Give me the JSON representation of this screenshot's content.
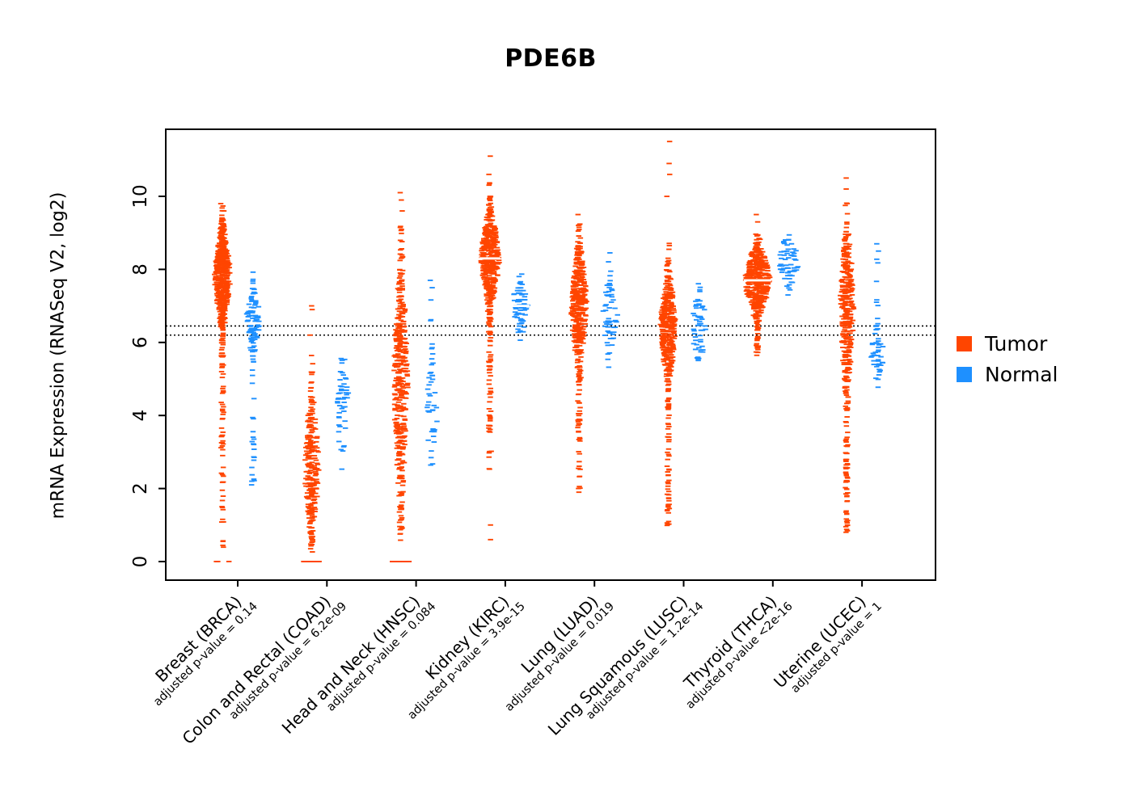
{
  "chart_data": {
    "type": "scatter",
    "variant": "paired strip/violin plot of per-sample expression values",
    "title": "PDE6B",
    "ylabel": "mRNA Expression (RNASeq V2, log2)",
    "xlabel": "",
    "yticks": [
      0,
      2,
      4,
      6,
      8,
      10
    ],
    "ylim": [
      -0.5,
      11.9
    ],
    "grid": false,
    "legend_position": "right",
    "reference_lines": [
      6.45,
      6.2
    ],
    "colors": {
      "tumor": "#FF4500",
      "normal": "#1E90FF"
    },
    "legend": [
      {
        "label": "Tumor",
        "color": "#FF4500"
      },
      {
        "label": "Normal",
        "color": "#1E90FF"
      }
    ],
    "groups": [
      {
        "label": "Breast (BRCA)",
        "pvalue_label": "adjusted p-value = 0.14",
        "tumor": {
          "median": 7.8,
          "q1": 7.3,
          "q3": 8.3,
          "min": 0.2,
          "max": 9.8,
          "n": 650,
          "w": 9,
          "tail_frac": 0.1,
          "tail_lo": 0.2,
          "tail_hi": 6.6,
          "zero_spike": 3,
          "outliers": [
            9.8,
            9.6,
            9.3
          ],
          "median_bar": false
        },
        "normal": {
          "median": 6.6,
          "q1": 6.3,
          "q3": 7.0,
          "min": 2.1,
          "max": 8.0,
          "n": 120,
          "w": 8,
          "tail_frac": 0.2,
          "tail_lo": 2.1,
          "tail_hi": 6.1,
          "zero_spike": 0,
          "outliers": [
            2.1,
            2.2
          ],
          "median_bar": false
        }
      },
      {
        "label": "Colon and Rectal (COAD)",
        "pvalue_label": "adjusted p-value = 6.2e-09",
        "tumor": {
          "median": 2.6,
          "q1": 2.0,
          "q3": 3.4,
          "min": 0.2,
          "max": 5.9,
          "n": 260,
          "w": 8,
          "tail_frac": 0.12,
          "tail_lo": 0.2,
          "tail_hi": 5.9,
          "zero_spike": 20,
          "outliers": [
            7.0,
            6.9,
            6.2
          ],
          "median_bar": false
        },
        "normal": {
          "median": 4.3,
          "q1": 3.8,
          "q3": 4.9,
          "min": 2.5,
          "max": 5.6,
          "n": 50,
          "w": 8,
          "tail_frac": 0.0,
          "tail_lo": 2.5,
          "tail_hi": 5.6,
          "zero_spike": 0,
          "outliers": [],
          "median_bar": false
        }
      },
      {
        "label": "Head and Neck (HNSC)",
        "pvalue_label": "adjusted p-value = 0.084",
        "tumor": {
          "median": 4.9,
          "q1": 3.6,
          "q3": 6.1,
          "min": 0.3,
          "max": 9.4,
          "n": 420,
          "w": 8,
          "tail_frac": 0.1,
          "tail_lo": 0.3,
          "tail_hi": 9.4,
          "zero_spike": 18,
          "outliers": [
            10.1,
            9.9,
            9.6
          ],
          "median_bar": false
        },
        "normal": {
          "median": 4.1,
          "q1": 3.7,
          "q3": 4.6,
          "min": 2.6,
          "max": 6.2,
          "n": 45,
          "w": 8,
          "tail_frac": 0.15,
          "tail_lo": 4.8,
          "tail_hi": 7.7,
          "zero_spike": 0,
          "outliers": [
            7.7,
            7.5
          ],
          "median_bar": false
        }
      },
      {
        "label": "Kidney (KIRC)",
        "pvalue_label": "adjusted p-value = 3.9e-15",
        "tumor": {
          "median": 8.3,
          "q1": 7.8,
          "q3": 8.8,
          "min": 6.0,
          "max": 10.4,
          "n": 500,
          "w": 11,
          "tail_frac": 0.12,
          "tail_lo": 2.5,
          "tail_hi": 7.0,
          "zero_spike": 0,
          "outliers": [
            11.1,
            10.6,
            1.0,
            0.6
          ],
          "median_bar": true
        },
        "normal": {
          "median": 7.0,
          "q1": 6.7,
          "q3": 7.4,
          "min": 6.0,
          "max": 8.2,
          "n": 70,
          "w": 9,
          "tail_frac": 0.0,
          "tail_lo": 6.0,
          "tail_hi": 8.2,
          "zero_spike": 0,
          "outliers": [],
          "median_bar": true
        }
      },
      {
        "label": "Lung (LUAD)",
        "pvalue_label": "adjusted p-value = 0.019",
        "tumor": {
          "median": 7.0,
          "q1": 6.3,
          "q3": 7.7,
          "min": 3.5,
          "max": 9.3,
          "n": 420,
          "w": 9,
          "tail_frac": 0.1,
          "tail_lo": 2.0,
          "tail_hi": 5.5,
          "zero_spike": 0,
          "outliers": [
            9.5,
            2.0,
            1.9
          ],
          "median_bar": false
        },
        "normal": {
          "median": 6.7,
          "q1": 6.3,
          "q3": 7.2,
          "min": 5.2,
          "max": 8.5,
          "n": 60,
          "w": 9,
          "tail_frac": 0.0,
          "tail_lo": 5.2,
          "tail_hi": 8.5,
          "zero_spike": 0,
          "outliers": [],
          "median_bar": false
        }
      },
      {
        "label": "Lung Squamous (LUSC)",
        "pvalue_label": "adjusted p-value = 1.2e-14",
        "tumor": {
          "median": 6.4,
          "q1": 5.9,
          "q3": 7.0,
          "min": 3.8,
          "max": 9.6,
          "n": 420,
          "w": 9,
          "tail_frac": 0.12,
          "tail_lo": 0.8,
          "tail_hi": 4.5,
          "zero_spike": 0,
          "outliers": [
            11.5,
            10.9,
            10.6,
            10.0
          ],
          "median_bar": false
        },
        "normal": {
          "median": 6.4,
          "q1": 6.1,
          "q3": 6.9,
          "min": 5.5,
          "max": 7.8,
          "n": 55,
          "w": 9,
          "tail_frac": 0.0,
          "tail_lo": 5.5,
          "tail_hi": 7.8,
          "zero_spike": 0,
          "outliers": [],
          "median_bar": false
        }
      },
      {
        "label": "Thyroid (THCA)",
        "pvalue_label": "adjusted p-value <2e-16",
        "tumor": {
          "median": 7.7,
          "q1": 7.3,
          "q3": 8.1,
          "min": 5.9,
          "max": 9.0,
          "n": 480,
          "w": 15,
          "tail_frac": 0.04,
          "tail_lo": 5.6,
          "tail_hi": 6.5,
          "zero_spike": 0,
          "outliers": [
            9.5,
            9.3
          ],
          "median_bar": true
        },
        "normal": {
          "median": 8.2,
          "q1": 7.9,
          "q3": 8.5,
          "min": 7.2,
          "max": 9.0,
          "n": 65,
          "w": 12,
          "tail_frac": 0.0,
          "tail_lo": 7.2,
          "tail_hi": 9.0,
          "zero_spike": 0,
          "outliers": [],
          "median_bar": true
        }
      },
      {
        "label": "Uterine (UCEC)",
        "pvalue_label": "adjusted p-value = 1",
        "tumor": {
          "median": 7.0,
          "q1": 6.2,
          "q3": 7.9,
          "min": 3.4,
          "max": 10.0,
          "n": 380,
          "w": 8,
          "tail_frac": 0.22,
          "tail_lo": 0.8,
          "tail_hi": 5.8,
          "zero_spike": 0,
          "outliers": [
            10.5,
            10.2,
            1.0
          ],
          "median_bar": false
        },
        "normal": {
          "median": 5.6,
          "q1": 5.3,
          "q3": 5.9,
          "min": 3.6,
          "max": 8.7,
          "n": 50,
          "w": 8,
          "tail_frac": 0.18,
          "tail_lo": 6.2,
          "tail_hi": 8.7,
          "zero_spike": 0,
          "outliers": [
            8.7,
            8.5
          ],
          "median_bar": false
        }
      }
    ]
  }
}
